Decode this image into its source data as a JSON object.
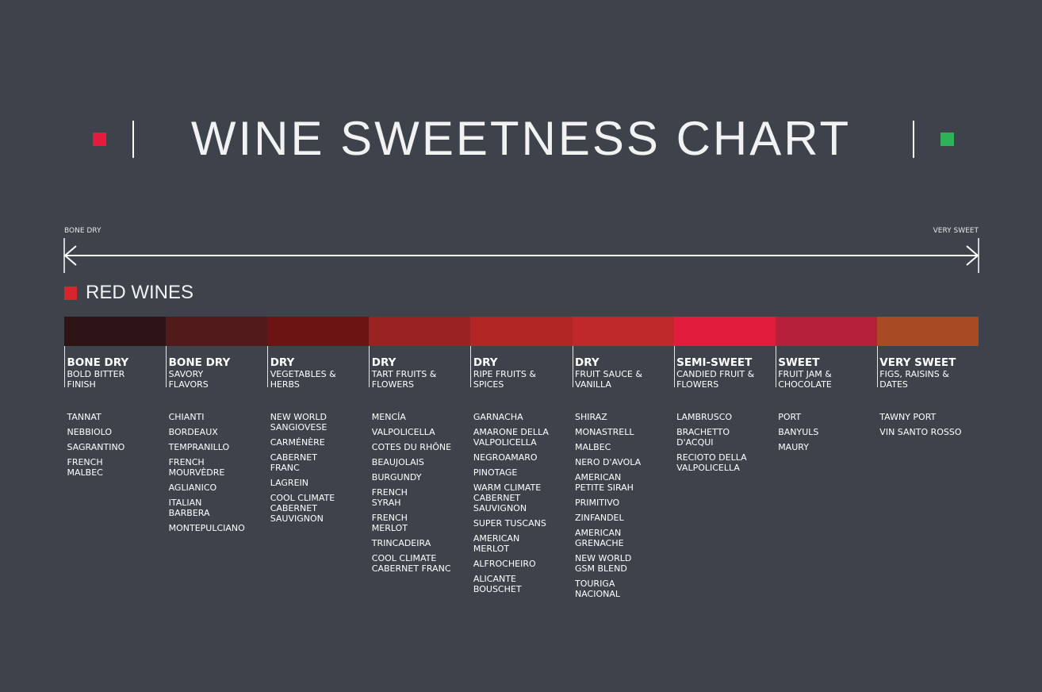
{
  "header": {
    "title": "WINE SWEETNESS CHART"
  },
  "scale": {
    "left_label": "BONE DRY",
    "right_label": "VERY SWEET"
  },
  "section": {
    "title": "RED WINES"
  },
  "columns": [
    {
      "level": "BONE DRY",
      "description": "BOLD BITTER\nFINISH",
      "color": "#2e1416",
      "wines": [
        "TANNAT",
        "NEBBIOLO",
        "SAGRANTINO",
        "FRENCH\nMALBEC"
      ]
    },
    {
      "level": "BONE DRY",
      "description": "SAVORY\nFLAVORS",
      "color": "#521b1b",
      "wines": [
        "CHIANTI",
        "BORDEAUX",
        "TEMPRANILLO",
        "FRENCH\nMOURVÈDRE",
        "AGLIANICO",
        "ITALIAN\nBARBERA",
        "MONTEPULCIANO"
      ]
    },
    {
      "level": "DRY",
      "description": "VEGETABLES &\nHERBS",
      "color": "#6c1313",
      "wines": [
        "NEW WORLD\nSANGIOVESE",
        "CARMÉNÈRE",
        "CABERNET\nFRANC",
        "LAGREIN",
        "COOL CLIMATE\nCABERNET\nSAUVIGNON"
      ]
    },
    {
      "level": "DRY",
      "description": "TART FRUITS &\nFLOWERS",
      "color": "#9a2222",
      "wines": [
        "MENCÍA",
        "VALPOLICELLA",
        "COTES DU RHÔNE",
        "BEAUJOLAIS",
        "BURGUNDY",
        "FRENCH\nSYRAH",
        "FRENCH\nMERLOT",
        "TRINCADEIRA",
        "COOL CLIMATE\nCABERNET FRANC"
      ]
    },
    {
      "level": "DRY",
      "description": "RIPE FRUITS &\nSPICES",
      "color": "#b22626",
      "wines": [
        "GARNACHA",
        "AMARONE DELLA\nVALPOLICELLA",
        "NEGROAMARO",
        "PINOTAGE",
        "WARM CLIMATE\nCABERNET\nSAUVIGNON",
        "SUPER TUSCANS",
        "AMERICAN\nMERLOT",
        "ALFROCHEIRO",
        "ALICANTE\nBOUSCHET"
      ]
    },
    {
      "level": "DRY",
      "description": "FRUIT SAUCE &\nVANILLA",
      "color": "#c0292b",
      "wines": [
        "SHIRAZ",
        "MONASTRELL",
        "MALBEC",
        "NERO D'AVOLA",
        "AMERICAN\nPETITE SIRAH",
        "PRIMITIVO",
        "ZINFANDEL",
        "AMERICAN\nGRENACHE",
        "NEW WORLD\nGSM BLEND",
        "TOURIGA\nNACIONAL"
      ]
    },
    {
      "level": "SEMI-SWEET",
      "description": "CANDIED FRUIT &\nFLOWERS",
      "color": "#e11c3d",
      "wines": [
        "LAMBRUSCO",
        "BRACHETTO\nD'ACQUI",
        "RECIOTO DELLA\nVALPOLICELLA"
      ]
    },
    {
      "level": "SWEET",
      "description": "FRUIT JAM &\nCHOCOLATE",
      "color": "#b6203b",
      "wines": [
        "PORT",
        "BANYULS",
        "MAURY"
      ]
    },
    {
      "level": "VERY SWEET",
      "description": "FIGS, RAISINS &\nDATES",
      "color": "#a84b24",
      "wines": [
        "TAWNY PORT",
        "VIN SANTO ROSSO"
      ]
    }
  ]
}
